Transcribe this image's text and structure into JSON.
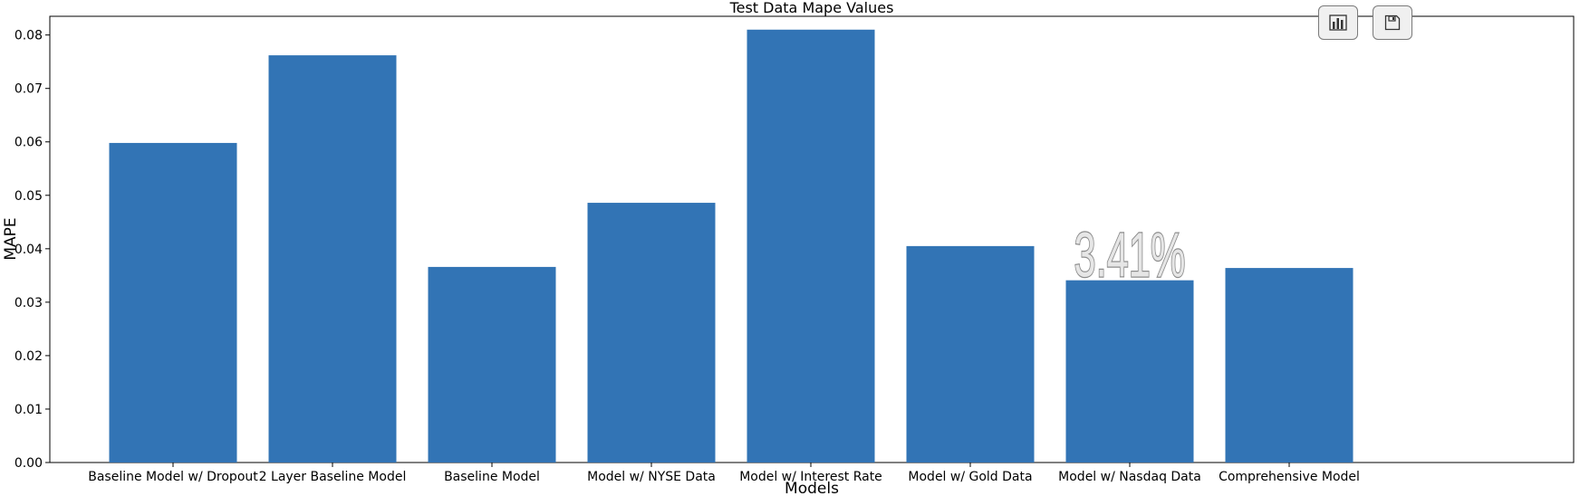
{
  "chart_data": {
    "type": "bar",
    "title": "Test Data Mape Values",
    "xlabel": "Models",
    "ylabel": "MAPE",
    "categories": [
      "Baseline Model w/ Dropout",
      "2 Layer Baseline Model",
      "Baseline Model",
      "Model w/ NYSE Data",
      "Model w/ Interest Rate",
      "Model w/ Gold Data",
      "Model w/ Nasdaq Data",
      "Comprehensive Model"
    ],
    "values": [
      0.0598,
      0.0762,
      0.0366,
      0.0486,
      0.081,
      0.0405,
      0.0341,
      0.0364
    ],
    "ylim": [
      0,
      0.08
    ],
    "yticks": [
      "0.00",
      "0.01",
      "0.02",
      "0.03",
      "0.04",
      "0.05",
      "0.06",
      "0.07",
      "0.08"
    ],
    "annotation": {
      "text": "3.41%",
      "category": "Model w/ Nasdaq Data"
    },
    "bar_color": "#3274b5",
    "grid": false,
    "legend": "none"
  },
  "toolbar": {
    "chart_button_icon": "bar-chart-icon",
    "save_button_icon": "save-icon"
  }
}
